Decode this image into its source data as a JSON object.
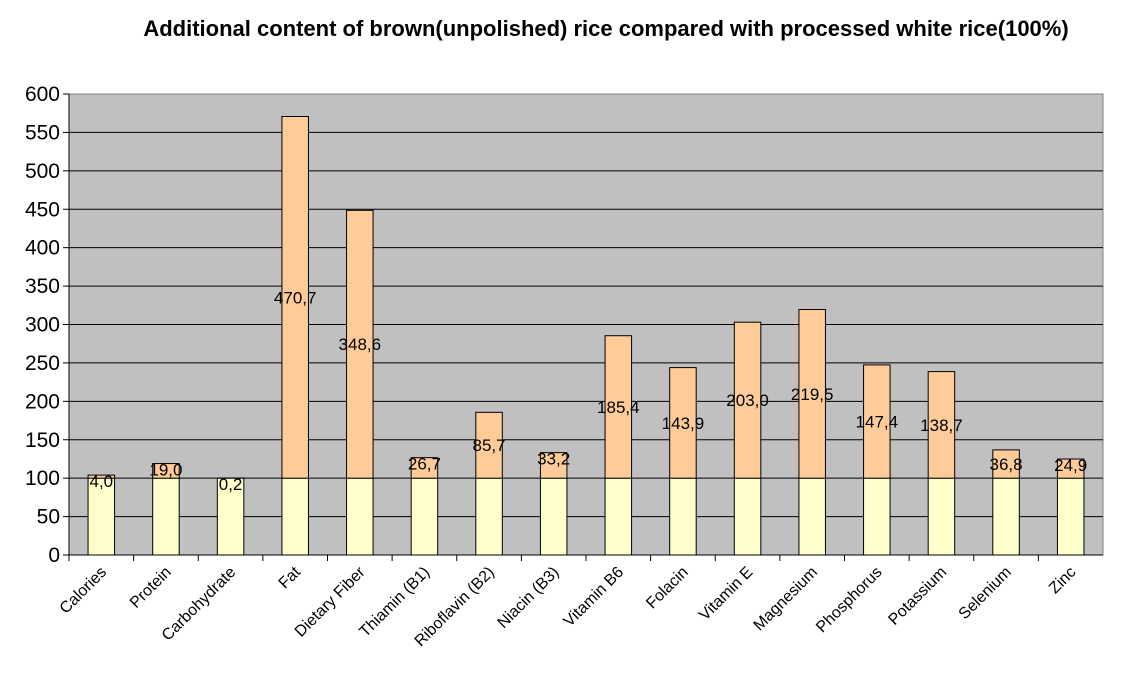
{
  "chart_data": {
    "type": "bar",
    "stacked": true,
    "title": "Additional content of brown(unpolished) rice compared with processed white rice(100%)",
    "categories": [
      "Calories",
      "Protein",
      "Carbohydrate",
      "Fat",
      "Dietary Fiber",
      "Thiamin (B1)",
      "Riboflavin (B2)",
      "Niacin (B3)",
      "Vitamin B6",
      "Folacin",
      "Vitamin E",
      "Magnesium",
      "Phosphorus",
      "Potassium",
      "Selenium",
      "Zinc"
    ],
    "series": [
      {
        "values": [
          100,
          100,
          100,
          100,
          100,
          100,
          100,
          100,
          100,
          100,
          100,
          100,
          100,
          100,
          100,
          100
        ],
        "color": "#ffffcc"
      },
      {
        "values": [
          4.0,
          19.0,
          0.2,
          470.7,
          348.6,
          26.7,
          85.7,
          33.2,
          185.4,
          143.9,
          203.0,
          219.5,
          147.4,
          138.7,
          36.8,
          24.9
        ],
        "color": "#ffcc99"
      }
    ],
    "data_labels": [
      "4,0",
      "19,0",
      "0,2",
      "470,7",
      "348,6",
      "26,7",
      "85,7",
      "33,2",
      "185,4",
      "143,9",
      "203,0",
      "219,5",
      "147,4",
      "138,7",
      "36,8",
      "24,9"
    ],
    "y_ticks": [
      "0",
      "50",
      "100",
      "150",
      "200",
      "250",
      "300",
      "350",
      "400",
      "450",
      "500",
      "550",
      "600"
    ],
    "ylim": [
      0,
      600
    ],
    "grid": true,
    "legend": "none",
    "plot_background": "#c0c0c0"
  }
}
